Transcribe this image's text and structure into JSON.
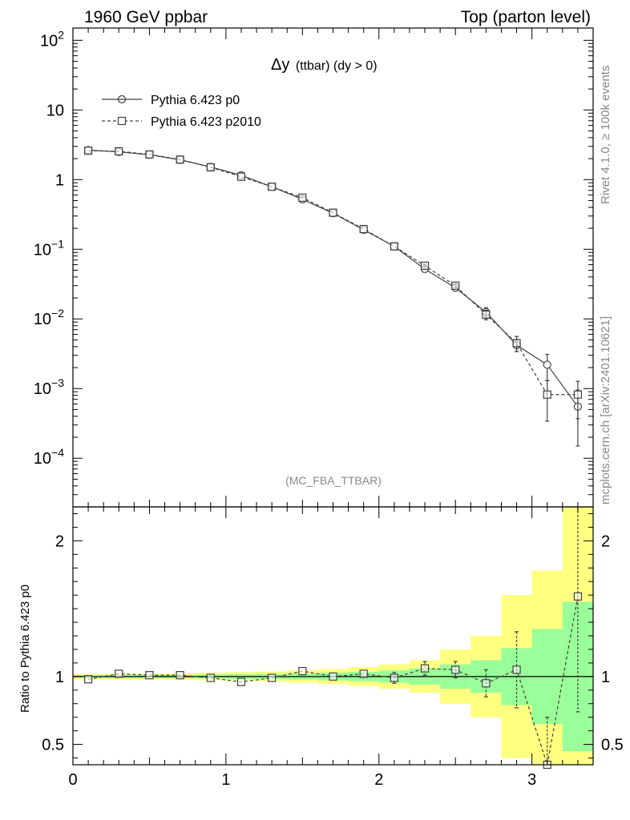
{
  "header": {
    "left": "1960 GeV ppbar",
    "right": "Top (parton level)"
  },
  "side": {
    "rivet": "Rivet 4.1.0, ≥ 100k events",
    "mcplots": "mcplots.cern.ch [arXiv:2401.10621]"
  },
  "plot": {
    "title_main": "Δy",
    "title_sub": "(ttbar) (dy > 0)",
    "analysis": "(MC_FBA_TTBAR)",
    "ratio_ylabel": "Ratio to Pythia 6.423 p0"
  },
  "colors": {
    "line": "#404040",
    "band_outer": "#ffff80",
    "band_inner": "#99ff99"
  },
  "chart_data": [
    {
      "type": "line",
      "panel": "main",
      "yscale": "log",
      "xlim": [
        0,
        3.4
      ],
      "ylim": [
        2e-05,
        150
      ],
      "yticks": [
        {
          "v": 100,
          "base": "10",
          "exp": "2"
        },
        {
          "v": 10,
          "base": "10",
          "exp": ""
        },
        {
          "v": 1,
          "base": "1",
          "exp": ""
        },
        {
          "v": 0.1,
          "base": "10",
          "exp": "−1"
        },
        {
          "v": 0.01,
          "base": "10",
          "exp": "−2"
        },
        {
          "v": 0.001,
          "base": "10",
          "exp": "−3"
        },
        {
          "v": 0.0001,
          "base": "10",
          "exp": "−4"
        }
      ],
      "x": [
        0.1,
        0.3,
        0.5,
        0.7,
        0.9,
        1.1,
        1.3,
        1.5,
        1.7,
        1.9,
        2.1,
        2.3,
        2.5,
        2.7,
        2.9,
        3.1,
        3.3
      ],
      "series": [
        {
          "name": "Pythia 6.423 p0",
          "marker": "circle",
          "dash": false,
          "values": [
            2.65,
            2.5,
            2.28,
            1.92,
            1.52,
            1.15,
            0.79,
            0.52,
            0.33,
            0.19,
            0.11,
            0.052,
            0.028,
            0.0125,
            0.0042,
            0.0022,
            0.00055
          ],
          "errors": [
            0,
            0,
            0,
            0,
            0,
            0,
            0,
            0,
            0,
            0,
            0,
            0.003,
            0.002,
            0.002,
            0.0008,
            0.0009,
            0.0004
          ]
        },
        {
          "name": "Pythia 6.423 p2010",
          "marker": "square",
          "dash": true,
          "values": [
            2.6,
            2.55,
            2.3,
            1.94,
            1.5,
            1.1,
            0.79,
            0.55,
            0.335,
            0.195,
            0.11,
            0.058,
            0.03,
            0.0115,
            0.0045,
            0.00082,
            0.00082
          ],
          "errors": [
            0,
            0,
            0,
            0,
            0,
            0,
            0,
            0,
            0,
            0,
            0,
            0.003,
            0.002,
            0.0018,
            0.0011,
            0.00048,
            0.00045
          ]
        }
      ]
    },
    {
      "type": "line",
      "panel": "ratio",
      "xlim": [
        0,
        3.4
      ],
      "ylim": [
        0.35,
        2.25
      ],
      "yticks": [
        0.5,
        1,
        2
      ],
      "xticks": [
        0,
        1,
        2,
        3
      ],
      "reference_line": 1,
      "bin_edges": [
        0,
        0.2,
        0.4,
        0.6,
        0.8,
        1.0,
        1.2,
        1.4,
        1.6,
        1.8,
        2.0,
        2.2,
        2.4,
        2.6,
        2.8,
        3.0,
        3.2,
        3.4
      ],
      "band_inner": [
        0.01,
        0.01,
        0.01,
        0.012,
        0.014,
        0.016,
        0.018,
        0.022,
        0.028,
        0.035,
        0.045,
        0.06,
        0.09,
        0.12,
        0.21,
        0.35,
        0.55
      ],
      "band_outer": [
        0.02,
        0.02,
        0.02,
        0.024,
        0.028,
        0.032,
        0.036,
        0.045,
        0.056,
        0.07,
        0.09,
        0.12,
        0.2,
        0.3,
        0.6,
        0.78,
        1.5
      ],
      "x": [
        0.1,
        0.3,
        0.5,
        0.7,
        0.9,
        1.1,
        1.3,
        1.5,
        1.7,
        1.9,
        2.1,
        2.3,
        2.5,
        2.7,
        2.9,
        3.1,
        3.3
      ],
      "values": [
        0.98,
        1.02,
        1.01,
        1.01,
        0.99,
        0.96,
        0.99,
        1.04,
        1.0,
        1.02,
        0.99,
        1.06,
        1.05,
        0.95,
        1.05,
        0.35,
        1.59
      ],
      "errors": [
        0,
        0,
        0,
        0,
        0,
        0,
        0,
        0,
        0,
        0,
        0.04,
        0.05,
        0.06,
        0.1,
        0.28,
        0.35,
        0.85
      ]
    }
  ]
}
